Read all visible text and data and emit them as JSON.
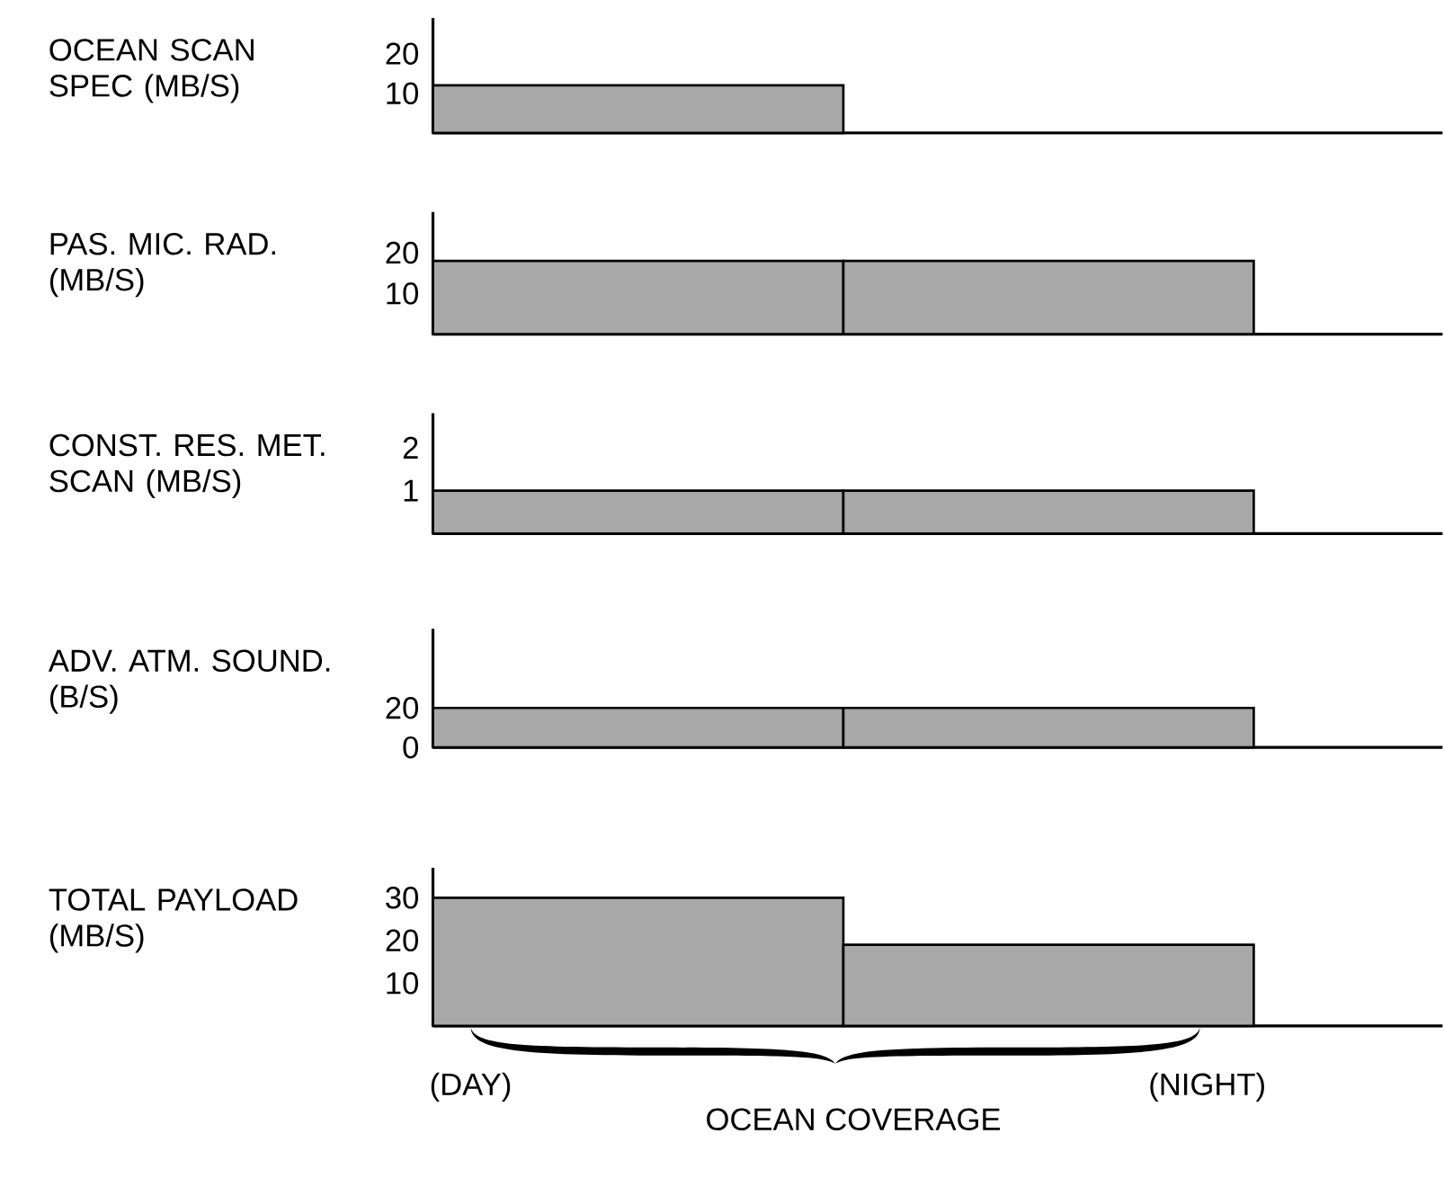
{
  "chart_data": [
    {
      "type": "bar",
      "ylabel": "OCEAN SCAN SPEC (MB/S)",
      "categories": [
        null,
        null
      ],
      "values": [
        12,
        null
      ],
      "color": "#a8a8a8",
      "ylim": [
        0,
        29
      ],
      "yticks": [
        10,
        20
      ]
    },
    {
      "type": "bar",
      "ylabel": "PAS. MIC. RAD. (MB/S)",
      "categories": [
        null,
        null
      ],
      "values": [
        18,
        18
      ],
      "color": "#a8a8a8",
      "ylim": [
        0,
        30
      ],
      "yticks": [
        10,
        20
      ]
    },
    {
      "type": "bar",
      "ylabel": "CONST. RES. MET. SCAN (MB/S)",
      "categories": [
        null,
        null
      ],
      "values": [
        1,
        1
      ],
      "color": "#a8a8a8",
      "ylim": [
        0,
        2.8
      ],
      "yticks": [
        1,
        2
      ]
    },
    {
      "type": "bar",
      "ylabel": "ADV. ATM. SOUND. (B/S)",
      "categories": [
        null,
        null
      ],
      "values": [
        20,
        20
      ],
      "color": "#a8a8a8",
      "ylim": [
        0,
        60
      ],
      "yticks": [
        0,
        20
      ]
    },
    {
      "type": "bar",
      "ylabel": "TOTAL PAYLOAD (MB/S)",
      "categories": [
        null,
        null
      ],
      "values": [
        30,
        19
      ],
      "color": "#a8a8a8",
      "ylim": [
        0,
        37
      ],
      "yticks": [
        10,
        20,
        30
      ],
      "annotations": [
        "(DAY)",
        "OCEAN COVERAGE",
        "(NIGHT)"
      ]
    }
  ]
}
